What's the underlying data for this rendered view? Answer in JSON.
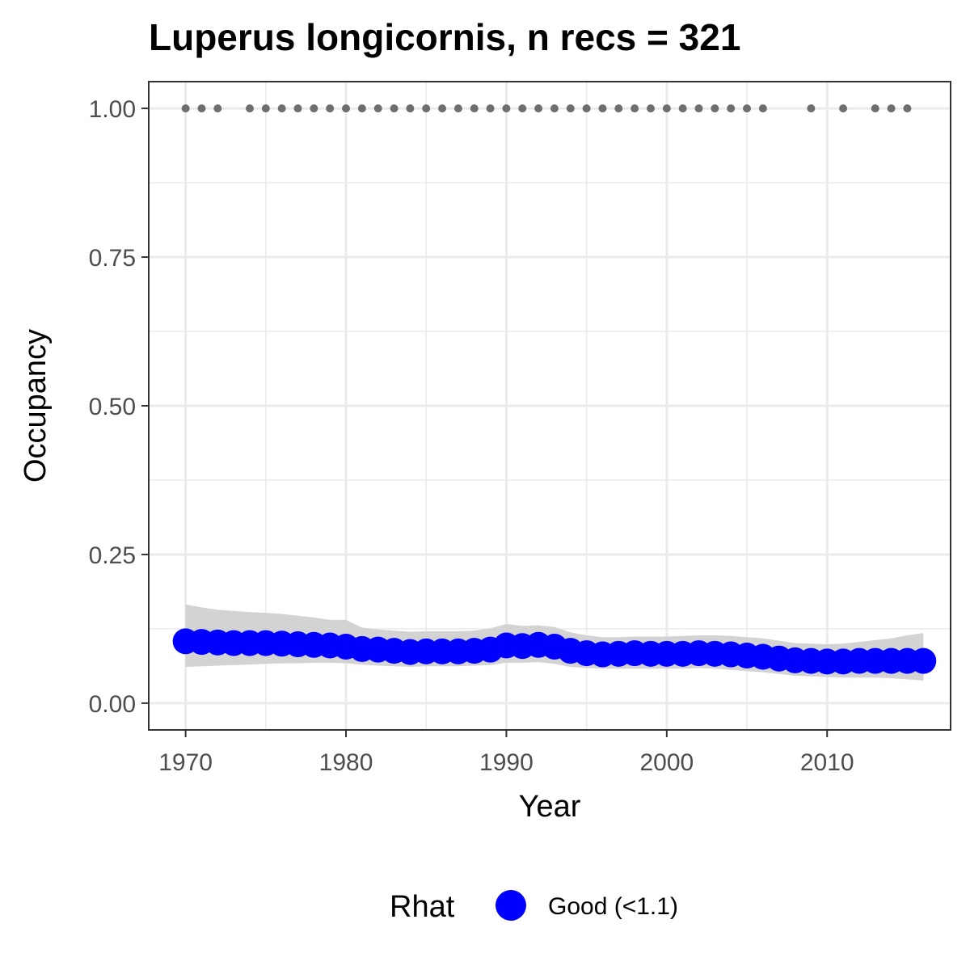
{
  "chart_data": {
    "type": "scatter",
    "title": "Luperus longicornis, n recs = 321",
    "xlabel": "Year",
    "ylabel": "Occupancy",
    "xlim": [
      1967.7,
      1917.7
    ],
    "ylim": [
      -0.045,
      1.045
    ],
    "x_ticks": [
      1970,
      1980,
      1990,
      2000,
      2010
    ],
    "x_tick_labels": [
      "1970",
      "1980",
      "1990",
      "2000",
      "2010"
    ],
    "y_ticks": [
      0.0,
      0.25,
      0.5,
      0.75,
      1.0
    ],
    "y_tick_labels": [
      "0.00",
      "0.25",
      "0.50",
      "0.75",
      "1.00"
    ],
    "grid": true,
    "legend": {
      "title": "Rhat",
      "position": "bottom",
      "entries": [
        {
          "label": "Good (<1.1)",
          "color": "#0000ff"
        }
      ]
    },
    "colors": {
      "estimate": "#0000ff",
      "interval": "#d3d3d3",
      "records": "#6e6e6e",
      "grid": "#ebebeb",
      "panel_border": "#333333"
    },
    "series": [
      {
        "name": "Good (<1.1)",
        "x": [
          1970,
          1971,
          1972,
          1973,
          1974,
          1975,
          1976,
          1977,
          1978,
          1979,
          1980,
          1981,
          1982,
          1983,
          1984,
          1985,
          1986,
          1987,
          1988,
          1989,
          1990,
          1991,
          1992,
          1993,
          1994,
          1995,
          1996,
          1997,
          1998,
          1999,
          2000,
          2001,
          2002,
          2003,
          2004,
          2005,
          2006,
          2007,
          2008,
          2009,
          2010,
          2011,
          2012,
          2013,
          2014,
          2015,
          2016
        ],
        "y": [
          0.104,
          0.103,
          0.102,
          0.101,
          0.101,
          0.101,
          0.1,
          0.099,
          0.098,
          0.097,
          0.095,
          0.091,
          0.09,
          0.088,
          0.086,
          0.087,
          0.087,
          0.087,
          0.088,
          0.09,
          0.097,
          0.096,
          0.098,
          0.095,
          0.088,
          0.084,
          0.082,
          0.083,
          0.084,
          0.083,
          0.083,
          0.083,
          0.084,
          0.083,
          0.082,
          0.08,
          0.078,
          0.075,
          0.072,
          0.071,
          0.07,
          0.07,
          0.071,
          0.071,
          0.071,
          0.071,
          0.071
        ],
        "lower": [
          0.061,
          0.062,
          0.063,
          0.064,
          0.065,
          0.066,
          0.067,
          0.067,
          0.068,
          0.068,
          0.067,
          0.065,
          0.063,
          0.062,
          0.061,
          0.062,
          0.062,
          0.062,
          0.063,
          0.064,
          0.068,
          0.068,
          0.069,
          0.066,
          0.061,
          0.059,
          0.058,
          0.058,
          0.058,
          0.058,
          0.058,
          0.058,
          0.059,
          0.058,
          0.056,
          0.054,
          0.052,
          0.049,
          0.046,
          0.045,
          0.044,
          0.043,
          0.043,
          0.043,
          0.042,
          0.04,
          0.038
        ],
        "upper": [
          0.166,
          0.161,
          0.157,
          0.155,
          0.153,
          0.152,
          0.15,
          0.147,
          0.144,
          0.14,
          0.14,
          0.127,
          0.124,
          0.122,
          0.12,
          0.121,
          0.121,
          0.121,
          0.122,
          0.126,
          0.133,
          0.13,
          0.131,
          0.128,
          0.119,
          0.114,
          0.111,
          0.111,
          0.112,
          0.112,
          0.112,
          0.113,
          0.114,
          0.114,
          0.113,
          0.111,
          0.109,
          0.105,
          0.101,
          0.1,
          0.099,
          0.1,
          0.103,
          0.106,
          0.109,
          0.114,
          0.118
        ]
      }
    ],
    "records": {
      "y": 1.0,
      "x": [
        1970,
        1971,
        1972,
        1974,
        1975,
        1976,
        1977,
        1978,
        1979,
        1980,
        1981,
        1982,
        1983,
        1984,
        1985,
        1986,
        1987,
        1988,
        1989,
        1990,
        1991,
        1992,
        1993,
        1994,
        1995,
        1996,
        1997,
        1998,
        1999,
        2000,
        2001,
        2002,
        2003,
        2004,
        2005,
        2006,
        2009,
        2011,
        2013,
        2014,
        2015
      ]
    }
  }
}
